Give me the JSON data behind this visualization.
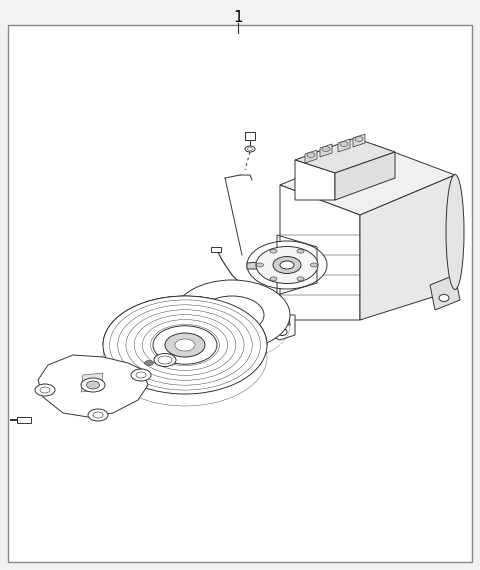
{
  "title": "1",
  "bg_color": "#f2f2f2",
  "border_color": "#555555",
  "line_color": "#333333",
  "fig_bg": "#f2f2f2",
  "diagram_bg": "#ffffff",
  "lw": 0.7
}
